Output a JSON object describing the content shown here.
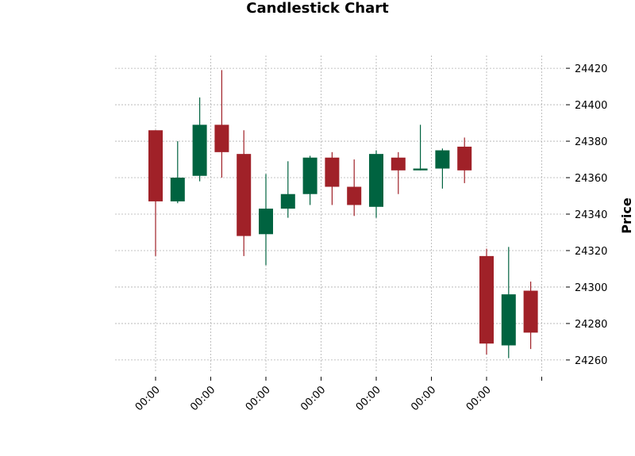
{
  "chart_data": {
    "type": "candlestick",
    "title": "Candlestick Chart",
    "xlabel": "",
    "ylabel": "Price",
    "ylim": [
      24253,
      24427
    ],
    "yticks": [
      24260,
      24280,
      24300,
      24320,
      24340,
      24360,
      24380,
      24400,
      24420
    ],
    "xtick_positions": [
      0,
      2.5,
      5,
      7.5,
      10,
      12.5,
      15,
      17.5
    ],
    "xtick_labels": [
      "00:00",
      "00:00",
      "00:00",
      "00:00",
      "00:00",
      "00:00",
      "00:00",
      ""
    ],
    "grid": true,
    "up_color": "#006340",
    "down_color": "#a02128",
    "candles": [
      {
        "open": 24386,
        "high": 24386,
        "low": 24317,
        "close": 24347
      },
      {
        "open": 24347,
        "high": 24380,
        "low": 24346,
        "close": 24360
      },
      {
        "open": 24361,
        "high": 24404,
        "low": 24358,
        "close": 24389
      },
      {
        "open": 24389,
        "high": 24419,
        "low": 24360,
        "close": 24374
      },
      {
        "open": 24373,
        "high": 24386,
        "low": 24317,
        "close": 24328
      },
      {
        "open": 24329,
        "high": 24362,
        "low": 24312,
        "close": 24343
      },
      {
        "open": 24343,
        "high": 24369,
        "low": 24338,
        "close": 24351
      },
      {
        "open": 24351,
        "high": 24372,
        "low": 24345,
        "close": 24371
      },
      {
        "open": 24371,
        "high": 24374,
        "low": 24345,
        "close": 24355
      },
      {
        "open": 24355,
        "high": 24370,
        "low": 24339,
        "close": 24345
      },
      {
        "open": 24344,
        "high": 24375,
        "low": 24338,
        "close": 24373
      },
      {
        "open": 24371,
        "high": 24374,
        "low": 24351,
        "close": 24364
      },
      {
        "open": 24364,
        "high": 24389,
        "low": 24364,
        "close": 24365
      },
      {
        "open": 24365,
        "high": 24376,
        "low": 24354,
        "close": 24375
      },
      {
        "open": 24377,
        "high": 24382,
        "low": 24357,
        "close": 24364
      },
      {
        "open": 24317,
        "high": 24321,
        "low": 24263,
        "close": 24269
      },
      {
        "open": 24268,
        "high": 24322,
        "low": 24261,
        "close": 24296
      },
      {
        "open": 24298,
        "high": 24303,
        "low": 24266,
        "close": 24275
      }
    ]
  }
}
